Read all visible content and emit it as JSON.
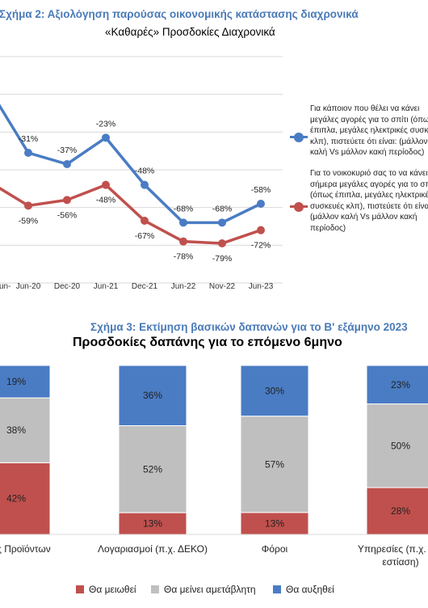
{
  "figure2": {
    "title": "Σχήμα 2: Αξιολόγηση παρούσας οικονομικής κατάστασης διαχρονικά",
    "chart_title": "«Καθαρές» Προσδοκίες Διαχρονικά"
  },
  "figure3": {
    "title": "Σχήμα 3: Εκτίμηση βασικών δαπανών για το Β' εξάμηνο 2023",
    "chart_title": "Προσδοκίες δαπάνης για το επόμενο 6μηνο"
  },
  "chart_data": [
    {
      "type": "line",
      "title": "«Καθαρές» Προσδοκίες Διαχρονικά",
      "x": [
        "Jun-20",
        "Dec-20",
        "Jun-21",
        "Dec-21",
        "Jun-22",
        "Nov-22",
        "Jun-23"
      ],
      "x_partial_leading_label": "Jun-",
      "series": [
        {
          "name": "Για κάποιον που θέλει να κάνει μεγάλες αγορές για το σπίτι (όπως έπιπλα, μεγάλες ηλεκτρικές συσκευές κλπ), πιστεύετε ότι είναι: (μάλλον καλή Vs μάλλον κακή περίοδος)",
          "color": "#4a7cc4",
          "leading_value": 4,
          "values": [
            -31,
            -37,
            -23,
            -48,
            -68,
            -68,
            -58
          ],
          "labels": [
            "-31%",
            "-37%",
            "-23%",
            "-48%",
            "-68%",
            "-68%",
            "-58%"
          ]
        },
        {
          "name": "Για το νοικοκυριό σας το να κάνει σήμερα μεγάλες αγορές για το σπίτι (όπως έπιπλα, μεγάλες ηλεκτρικές συσκευές κλπ), πιστεύετε ότι είναι: (μάλλον καλή Vs μάλλον κακή περίοδος)",
          "color": "#c0504d",
          "leading_value": -46,
          "values": [
            -59,
            -56,
            -48,
            -67,
            -78,
            -79,
            -72
          ],
          "labels": [
            "-59%",
            "-56%",
            "-48%",
            "-67%",
            "-78%",
            "-79%",
            "-72%"
          ]
        }
      ],
      "ylim": [
        -100,
        20
      ],
      "grid": true,
      "legend_position": "right"
    },
    {
      "type": "bar",
      "stacked": true,
      "title": "Προσδοκίες δαπάνης για το επόμενο 6μηνο",
      "categories": [
        "...ορές Προϊόντων",
        "Λογαριασμοί (π.χ. ΔΕΚΟ)",
        "Φόροι",
        "Υπηρεσίες (π.χ. εισι...",
        "εστίαση)"
      ],
      "bars": [
        {
          "label": "ορές Προϊόντων",
          "values": [
            42,
            38,
            19
          ]
        },
        {
          "label": "Λογαριασμοί (π.χ. ΔΕΚΟ)",
          "values": [
            13,
            52,
            36
          ]
        },
        {
          "label": "Φόροι",
          "values": [
            13,
            57,
            30
          ]
        },
        {
          "label": "Υπηρεσίες (π.χ. εισι",
          "label2": "εστίαση)",
          "values": [
            28,
            50,
            23
          ]
        }
      ],
      "series": [
        {
          "name": "Θα μειωθεί",
          "color": "#c0504d"
        },
        {
          "name": "Θα μείνει αμετάβλητη",
          "color": "#bfbfbf"
        },
        {
          "name": "Θα αυξηθεί",
          "color": "#4a7cc4"
        }
      ],
      "ylim": [
        0,
        100
      ],
      "legend_position": "bottom"
    }
  ],
  "legend1": {
    "lines_a": [
      "Για κάποιον που θέλει να κάνει",
      "μεγάλες αγορές για το σπίτι (όπως",
      "έπιπλα, μεγάλες ηλεκτρικές συσκευές",
      "κλπ), πιστεύετε ότι είναι: (μάλλον",
      "καλή Vs μάλλον κακή περίοδος)"
    ],
    "lines_b": [
      "Για το νοικοκυριό σας το να κάνει",
      "σήμερα μεγάλες αγορές για το σπίτι",
      "(όπως έπιπλα, μεγάλες ηλεκτρικές",
      "συσκευές κλπ), πιστεύετε ότι είναι:",
      "(μάλλον καλή Vs μάλλον κακή",
      "περίοδος)"
    ]
  }
}
